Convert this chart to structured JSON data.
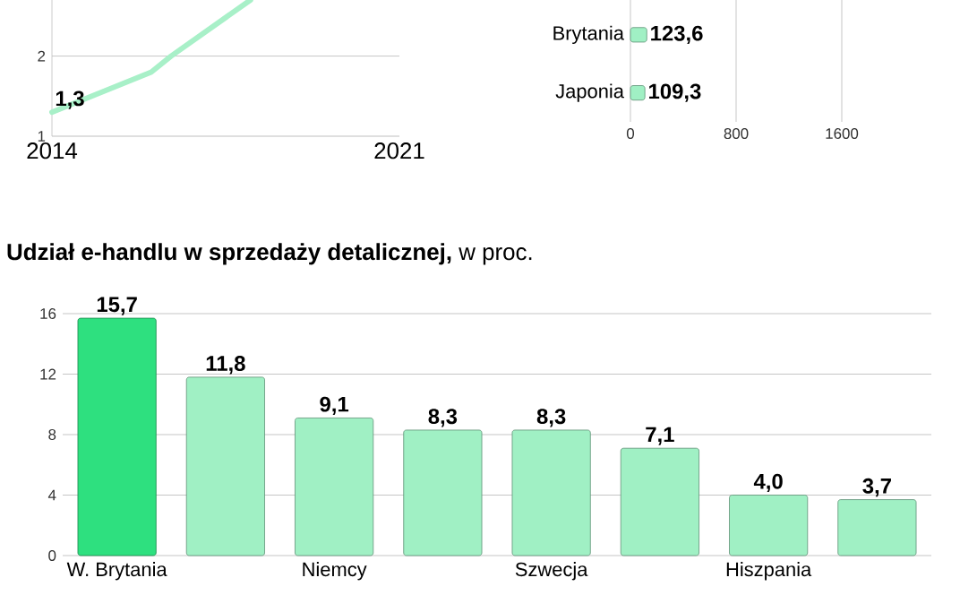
{
  "chart_data": [
    {
      "type": "line",
      "x": [
        2014,
        2016,
        2016.4,
        2018
      ],
      "xlim": [
        2014,
        2021
      ],
      "xticks": [
        2014,
        2021
      ],
      "ylim": [
        1,
        2.7
      ],
      "yticks": [
        1,
        2
      ],
      "grid": "y",
      "series": [
        {
          "color": "#a8f0c8",
          "values": [
            1.3,
            1.8,
            2.0,
            2.7
          ],
          "value_labels": [
            "1,3",
            null,
            null,
            null
          ]
        }
      ]
    },
    {
      "type": "bar",
      "orientation": "horizontal",
      "categories": [
        "Brytania",
        "Japonia"
      ],
      "values": [
        123.6,
        109.3
      ],
      "value_labels": [
        "123,6",
        "109,3"
      ],
      "color": "#a0f0c4",
      "xlim": [
        0,
        1600
      ],
      "xticks": [
        0,
        800,
        1600
      ],
      "grid": "x"
    },
    {
      "type": "bar",
      "title": "**Udział e-handlu w sprzedaży detalicznej,** w proc.",
      "categories": [
        "W. Brytania",
        null,
        "Niemcy",
        null,
        "Szwecja",
        null,
        "Hiszpania",
        null
      ],
      "values": [
        15.7,
        11.8,
        9.1,
        8.3,
        8.3,
        7.1,
        4.0,
        3.7
      ],
      "value_labels": [
        "15,7",
        "11,8",
        "9,1",
        "8,3",
        "8,3",
        "7,1",
        "4,0",
        "3,7"
      ],
      "colors": [
        "#2ee07f",
        "#a0f0c4",
        "#a0f0c4",
        "#a0f0c4",
        "#a0f0c4",
        "#a0f0c4",
        "#a0f0c4",
        "#a0f0c4"
      ],
      "ylim": [
        0,
        16
      ],
      "yticks": [
        0,
        4,
        8,
        12,
        16
      ],
      "grid": "y"
    }
  ]
}
